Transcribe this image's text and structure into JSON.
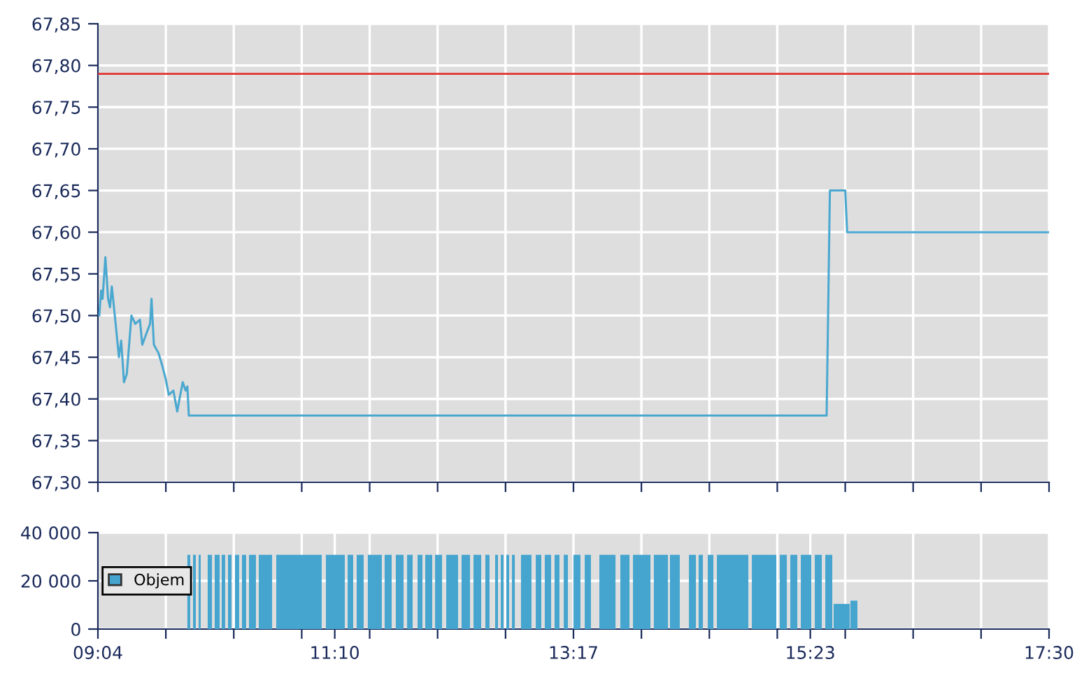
{
  "chart_data": [
    {
      "type": "line",
      "x": [
        9.079,
        9.095,
        9.108,
        9.133,
        9.157,
        9.174,
        9.19,
        9.224,
        9.253,
        9.273,
        9.298,
        9.323,
        9.364,
        9.398,
        9.439,
        9.46,
        9.501,
        9.529,
        9.542,
        9.563,
        9.604,
        9.637,
        9.666,
        9.695,
        9.736,
        9.77,
        9.79,
        9.819,
        9.844,
        9.86,
        9.873,
        15.528,
        15.557,
        15.693,
        15.71,
        17.5
      ],
      "series": [
        {
          "color": "#4aa8d0",
          "values": [
            67.5,
            67.53,
            67.52,
            67.57,
            67.52,
            67.51,
            67.535,
            67.49,
            67.45,
            67.47,
            67.42,
            67.43,
            67.5,
            67.49,
            67.495,
            67.465,
            67.48,
            67.49,
            67.52,
            67.465,
            67.455,
            67.44,
            67.425,
            67.405,
            67.41,
            67.385,
            67.4,
            67.42,
            67.41,
            67.415,
            67.38,
            67.38,
            67.65,
            67.65,
            67.6,
            67.6
          ]
        }
      ],
      "xlim": [
        9.0667,
        17.5
      ],
      "xticks": [
        {
          "value": 9.0667,
          "label": null
        },
        {
          "value": 9.669,
          "label": null
        },
        {
          "value": 10.2714,
          "label": null
        },
        {
          "value": 10.8738,
          "label": null
        },
        {
          "value": 11.4762,
          "label": null
        },
        {
          "value": 12.0786,
          "label": null
        },
        {
          "value": 12.681,
          "label": null
        },
        {
          "value": 13.2833,
          "label": null
        },
        {
          "value": 13.8857,
          "label": null
        },
        {
          "value": 14.4881,
          "label": null
        },
        {
          "value": 15.0905,
          "label": null
        },
        {
          "value": 15.6929,
          "label": null
        },
        {
          "value": 16.2952,
          "label": null
        },
        {
          "value": 16.8976,
          "label": null
        },
        {
          "value": 17.5,
          "label": null
        }
      ],
      "ylim": [
        67.3,
        67.85
      ],
      "yticks": [
        {
          "value": 67.3,
          "label": "67,30"
        },
        {
          "value": 67.35,
          "label": "67,35"
        },
        {
          "value": 67.4,
          "label": "67,40"
        },
        {
          "value": 67.45,
          "label": "67,45"
        },
        {
          "value": 67.5,
          "label": "67,50"
        },
        {
          "value": 67.55,
          "label": "67,55"
        },
        {
          "value": 67.6,
          "label": "67,60"
        },
        {
          "value": 67.65,
          "label": "67,65"
        },
        {
          "value": 67.7,
          "label": "67,70"
        },
        {
          "value": 67.75,
          "label": "67,75"
        },
        {
          "value": 67.8,
          "label": "67,80"
        },
        {
          "value": 67.85,
          "label": "67,85"
        }
      ],
      "ref_lines": [
        {
          "axis": "y",
          "value": 67.79,
          "color": "#e03030"
        }
      ],
      "grid": true,
      "tick_labels": "y",
      "legend": false
    },
    {
      "type": "histogram",
      "bins": [
        9.86,
        9.885,
        9.91,
        9.935,
        9.96,
        9.978,
        10.04,
        10.078,
        10.102,
        10.146,
        10.164,
        10.195,
        10.22,
        10.251,
        10.282,
        10.319,
        10.344,
        10.381,
        10.406,
        10.468,
        10.493,
        10.611,
        10.648,
        11.051,
        11.088,
        11.256,
        11.281,
        11.33,
        11.361,
        11.423,
        11.46,
        11.584,
        11.609,
        11.671,
        11.708,
        11.777,
        11.808,
        11.857,
        11.901,
        11.944,
        11.969,
        12.031,
        12.056,
        12.118,
        12.155,
        12.26,
        12.291,
        12.366,
        12.397,
        12.465,
        12.502,
        12.539,
        12.589,
        12.614,
        12.639,
        12.663,
        12.688,
        12.713,
        12.738,
        12.763,
        12.818,
        12.911,
        12.949,
        12.998,
        13.029,
        13.085,
        13.116,
        13.159,
        13.197,
        13.234,
        13.283,
        13.345,
        13.383,
        13.438,
        13.513,
        13.656,
        13.699,
        13.78,
        13.811,
        13.966,
        13.996,
        14.121,
        14.139,
        14.226,
        14.307,
        14.369,
        14.393,
        14.431,
        14.474,
        14.524,
        14.555,
        14.834,
        14.865,
        15.082,
        15.113,
        15.175,
        15.206,
        15.268,
        15.299,
        15.392,
        15.423,
        15.485,
        15.516,
        15.578,
        15.59,
        15.733,
        15.739,
        15.801
      ],
      "series": [
        {
          "name": "Objem",
          "color": "#45a5cf",
          "values": [
            30800,
            null,
            30800,
            null,
            30800,
            null,
            30800,
            null,
            30800,
            null,
            30800,
            null,
            30800,
            null,
            30800,
            null,
            30800,
            null,
            30800,
            null,
            30800,
            null,
            30800,
            null,
            30800,
            null,
            30800,
            null,
            30800,
            null,
            30800,
            null,
            30800,
            null,
            30800,
            null,
            30800,
            null,
            30800,
            null,
            30800,
            null,
            30800,
            null,
            30800,
            null,
            30800,
            null,
            30800,
            null,
            30800,
            null,
            30800,
            null,
            30800,
            null,
            30800,
            null,
            30800,
            null,
            30800,
            null,
            30800,
            null,
            30800,
            null,
            30800,
            null,
            30800,
            null,
            30800,
            null,
            30800,
            null,
            30800,
            null,
            30800,
            null,
            30800,
            null,
            30800,
            null,
            30800,
            null,
            30800,
            null,
            30800,
            null,
            30800,
            null,
            30800,
            null,
            30800,
            null,
            30800,
            null,
            30800,
            null,
            30800,
            null,
            30800,
            null,
            30800,
            null,
            10400,
            null,
            11800
          ]
        }
      ],
      "xlim": [
        9.0667,
        17.5
      ],
      "xticks": [
        {
          "value": 9.0667,
          "label": "09:04"
        },
        {
          "value": 9.669,
          "label": null
        },
        {
          "value": 10.2714,
          "label": null
        },
        {
          "value": 10.8738,
          "label": null
        },
        {
          "value": 11.1667,
          "label": "11:10"
        },
        {
          "value": 11.4762,
          "label": null
        },
        {
          "value": 12.0786,
          "label": null
        },
        {
          "value": 12.681,
          "label": null
        },
        {
          "value": 13.2833,
          "label": "13:17"
        },
        {
          "value": 13.8857,
          "label": null
        },
        {
          "value": 14.4881,
          "label": null
        },
        {
          "value": 15.0905,
          "label": null
        },
        {
          "value": 15.3833,
          "label": "15:23"
        },
        {
          "value": 15.6929,
          "label": null
        },
        {
          "value": 16.2952,
          "label": null
        },
        {
          "value": 16.8976,
          "label": null
        },
        {
          "value": 17.5,
          "label": "17:30"
        }
      ],
      "ylim": [
        0,
        40000
      ],
      "yticks": [
        {
          "value": 0,
          "label": "0"
        },
        {
          "value": 20000,
          "label": "20 000"
        },
        {
          "value": 40000,
          "label": "40 000"
        }
      ],
      "grid": true,
      "legend": "left"
    }
  ]
}
